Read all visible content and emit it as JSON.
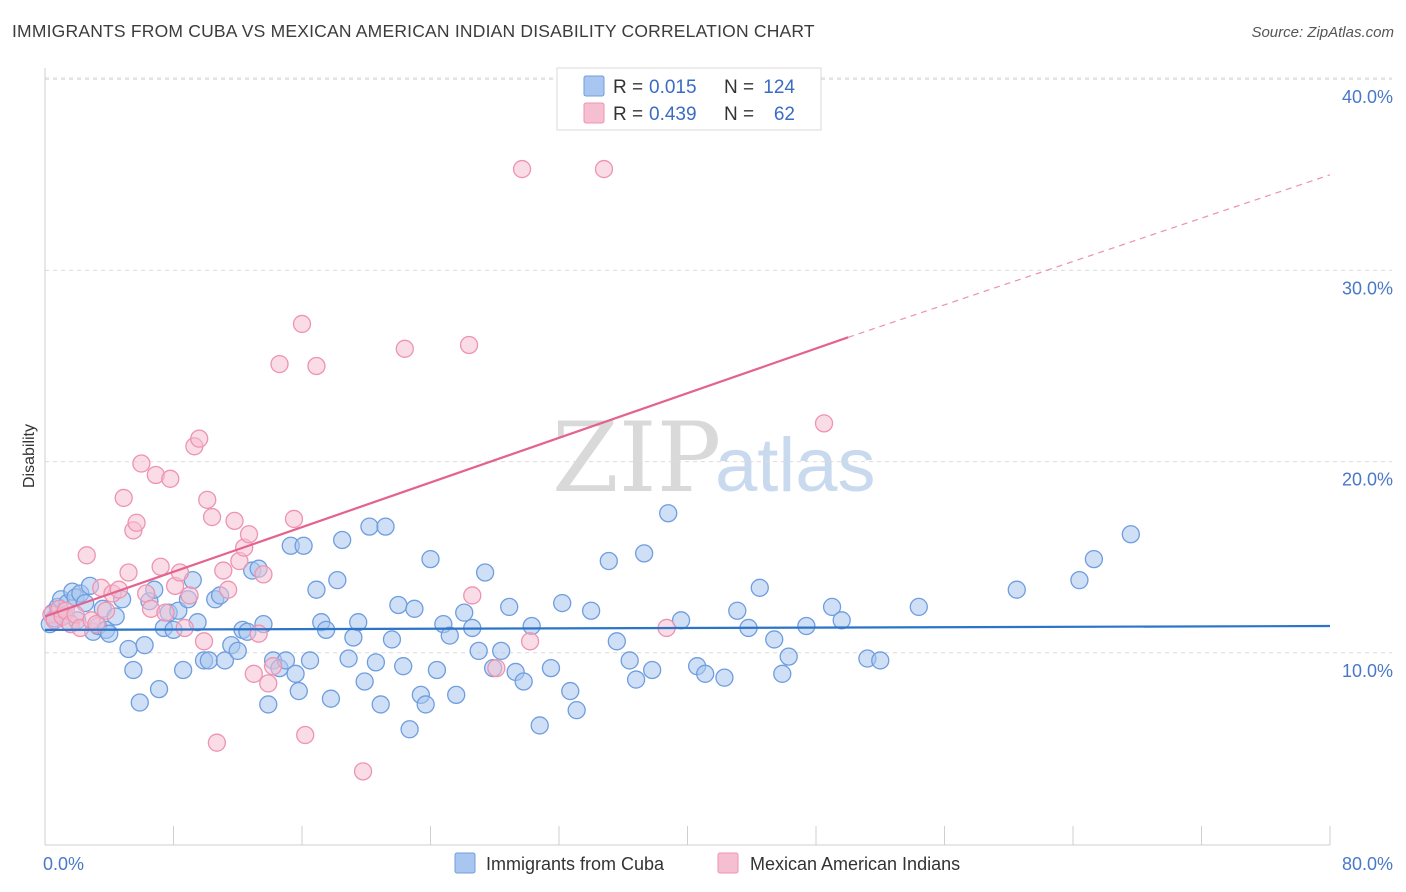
{
  "header": {
    "title": "IMMIGRANTS FROM CUBA VS MEXICAN AMERICAN INDIAN DISABILITY CORRELATION CHART",
    "source": "Source: ZipAtlas.com"
  },
  "watermark": {
    "part1": "ZIP",
    "part2": "atlas"
  },
  "legend": {
    "rows": [
      {
        "r_label": "R =",
        "r_value": "0.015",
        "n_label": "N =",
        "n_value": "124"
      },
      {
        "r_label": "R =",
        "r_value": "0.439",
        "n_label": "N =",
        "n_value": "62"
      }
    ]
  },
  "colors": {
    "blue_fill": "#a8c6ef",
    "blue_stroke": "#6f9ddf",
    "blue_line": "#2c74c8",
    "pink_fill": "#f6bfd1",
    "pink_stroke": "#ee93b1",
    "pink_line": "#e4638c",
    "grid": "#dcdcdc",
    "tick_label": "#4a78c8"
  },
  "chart_data": {
    "type": "scatter",
    "title": "IMMIGRANTS FROM CUBA VS MEXICAN AMERICAN INDIAN DISABILITY CORRELATION CHART",
    "xlabel": "",
    "ylabel": "Disability",
    "xlim": [
      0,
      80
    ],
    "ylim": [
      0,
      41
    ],
    "x_tick_labels": [
      "0.0%",
      "80.0%"
    ],
    "y_ticks": [
      10,
      20,
      30,
      40
    ],
    "y_tick_labels": [
      "10.0%",
      "20.0%",
      "30.0%",
      "40.0%"
    ],
    "grid": "horizontal dashed",
    "legend_position": "top-center",
    "series": [
      {
        "name": "Immigrants from Cuba",
        "color": "#6f9ddf",
        "r": 0.015,
        "n": 124,
        "trend": {
          "x0": 0,
          "y0": 11.2,
          "x1": 80,
          "y1": 11.4
        },
        "points": [
          [
            0.3,
            11.5
          ],
          [
            0.5,
            12.1
          ],
          [
            0.6,
            11.8
          ],
          [
            0.8,
            12.4
          ],
          [
            1.0,
            12.8
          ],
          [
            1.2,
            12.0
          ],
          [
            1.4,
            12.6
          ],
          [
            1.5,
            11.6
          ],
          [
            1.7,
            13.2
          ],
          [
            1.9,
            12.9
          ],
          [
            2.0,
            11.7
          ],
          [
            2.2,
            13.1
          ],
          [
            2.5,
            12.6
          ],
          [
            2.8,
            13.5
          ],
          [
            3.0,
            11.1
          ],
          [
            3.3,
            11.4
          ],
          [
            3.6,
            12.3
          ],
          [
            3.8,
            11.2
          ],
          [
            4.0,
            11.0
          ],
          [
            4.4,
            11.9
          ],
          [
            4.8,
            12.8
          ],
          [
            5.2,
            10.2
          ],
          [
            5.5,
            9.1
          ],
          [
            5.9,
            7.4
          ],
          [
            6.2,
            10.4
          ],
          [
            6.5,
            12.7
          ],
          [
            6.8,
            13.3
          ],
          [
            7.1,
            8.1
          ],
          [
            7.4,
            11.3
          ],
          [
            7.7,
            12.1
          ],
          [
            8.0,
            11.2
          ],
          [
            8.3,
            12.2
          ],
          [
            8.6,
            9.1
          ],
          [
            8.9,
            12.8
          ],
          [
            9.2,
            13.8
          ],
          [
            9.5,
            11.6
          ],
          [
            9.9,
            9.6
          ],
          [
            10.2,
            9.6
          ],
          [
            10.6,
            12.8
          ],
          [
            10.9,
            13.0
          ],
          [
            11.2,
            9.6
          ],
          [
            11.6,
            10.4
          ],
          [
            12.0,
            10.1
          ],
          [
            12.3,
            11.2
          ],
          [
            12.6,
            11.1
          ],
          [
            12.9,
            14.3
          ],
          [
            13.3,
            14.4
          ],
          [
            13.6,
            11.5
          ],
          [
            13.9,
            7.3
          ],
          [
            14.2,
            9.6
          ],
          [
            14.6,
            9.2
          ],
          [
            15.0,
            9.6
          ],
          [
            15.3,
            15.6
          ],
          [
            15.6,
            8.9
          ],
          [
            15.8,
            8.0
          ],
          [
            16.1,
            15.6
          ],
          [
            16.5,
            9.6
          ],
          [
            16.9,
            13.3
          ],
          [
            17.2,
            11.6
          ],
          [
            17.5,
            11.2
          ],
          [
            17.8,
            7.6
          ],
          [
            18.2,
            13.8
          ],
          [
            18.5,
            15.9
          ],
          [
            18.9,
            9.7
          ],
          [
            19.2,
            10.8
          ],
          [
            19.5,
            11.6
          ],
          [
            19.9,
            8.5
          ],
          [
            20.2,
            16.6
          ],
          [
            20.6,
            9.5
          ],
          [
            20.9,
            7.3
          ],
          [
            21.2,
            16.6
          ],
          [
            21.6,
            10.7
          ],
          [
            22.0,
            12.5
          ],
          [
            22.3,
            9.3
          ],
          [
            22.7,
            6.0
          ],
          [
            23.0,
            12.3
          ],
          [
            23.4,
            7.8
          ],
          [
            23.7,
            7.3
          ],
          [
            24.0,
            14.9
          ],
          [
            24.4,
            9.1
          ],
          [
            24.8,
            11.5
          ],
          [
            25.2,
            10.9
          ],
          [
            25.6,
            7.8
          ],
          [
            26.1,
            12.1
          ],
          [
            26.6,
            11.3
          ],
          [
            27.0,
            10.1
          ],
          [
            27.4,
            14.2
          ],
          [
            27.9,
            9.2
          ],
          [
            28.4,
            10.1
          ],
          [
            28.9,
            12.4
          ],
          [
            29.3,
            9.0
          ],
          [
            29.8,
            8.5
          ],
          [
            30.3,
            11.4
          ],
          [
            30.8,
            6.2
          ],
          [
            31.5,
            9.2
          ],
          [
            32.2,
            12.6
          ],
          [
            32.7,
            8.0
          ],
          [
            33.1,
            7.0
          ],
          [
            34.0,
            12.2
          ],
          [
            35.1,
            14.8
          ],
          [
            35.6,
            10.6
          ],
          [
            36.4,
            9.6
          ],
          [
            36.8,
            8.6
          ],
          [
            37.3,
            15.2
          ],
          [
            37.8,
            9.1
          ],
          [
            38.8,
            17.3
          ],
          [
            39.6,
            11.7
          ],
          [
            40.6,
            9.3
          ],
          [
            41.1,
            8.9
          ],
          [
            42.3,
            8.7
          ],
          [
            43.1,
            12.2
          ],
          [
            43.8,
            11.3
          ],
          [
            44.5,
            13.4
          ],
          [
            45.4,
            10.7
          ],
          [
            45.9,
            8.9
          ],
          [
            46.3,
            9.8
          ],
          [
            47.4,
            11.4
          ],
          [
            49.0,
            12.4
          ],
          [
            49.6,
            11.7
          ],
          [
            51.2,
            9.7
          ],
          [
            52.0,
            9.6
          ],
          [
            54.4,
            12.4
          ],
          [
            60.5,
            13.3
          ],
          [
            64.4,
            13.8
          ],
          [
            65.3,
            14.9
          ],
          [
            67.6,
            16.2
          ]
        ]
      },
      {
        "name": "Mexican American Indians",
        "color": "#ee93b1",
        "r": 0.439,
        "n": 62,
        "trend": {
          "x0": 0,
          "y0": 11.9,
          "x1": 50,
          "y1": 26.5,
          "dashed_to_x": 80,
          "dashed_to_y": 35.0
        },
        "points": [
          [
            0.4,
            12.0
          ],
          [
            0.6,
            11.7
          ],
          [
            0.9,
            12.3
          ],
          [
            1.1,
            11.9
          ],
          [
            1.3,
            12.2
          ],
          [
            1.6,
            11.5
          ],
          [
            1.9,
            12.0
          ],
          [
            2.2,
            11.3
          ],
          [
            2.6,
            15.1
          ],
          [
            2.9,
            11.7
          ],
          [
            3.2,
            11.5
          ],
          [
            3.5,
            13.4
          ],
          [
            3.8,
            12.2
          ],
          [
            4.2,
            13.1
          ],
          [
            4.6,
            13.3
          ],
          [
            4.9,
            18.1
          ],
          [
            5.2,
            14.2
          ],
          [
            5.5,
            16.4
          ],
          [
            5.7,
            16.8
          ],
          [
            6.0,
            19.9
          ],
          [
            6.3,
            13.1
          ],
          [
            6.6,
            12.3
          ],
          [
            6.9,
            19.3
          ],
          [
            7.2,
            14.5
          ],
          [
            7.5,
            12.1
          ],
          [
            7.8,
            19.1
          ],
          [
            8.1,
            13.5
          ],
          [
            8.4,
            14.2
          ],
          [
            8.7,
            11.3
          ],
          [
            9.0,
            13.0
          ],
          [
            9.3,
            20.8
          ],
          [
            9.6,
            21.2
          ],
          [
            9.9,
            10.6
          ],
          [
            10.1,
            18.0
          ],
          [
            10.4,
            17.1
          ],
          [
            10.7,
            5.3
          ],
          [
            11.1,
            14.3
          ],
          [
            11.4,
            13.3
          ],
          [
            11.8,
            16.9
          ],
          [
            12.1,
            14.8
          ],
          [
            12.4,
            15.5
          ],
          [
            12.7,
            16.2
          ],
          [
            13.0,
            8.9
          ],
          [
            13.3,
            11.0
          ],
          [
            13.6,
            14.1
          ],
          [
            13.9,
            8.4
          ],
          [
            14.2,
            9.3
          ],
          [
            14.6,
            25.1
          ],
          [
            15.5,
            17.0
          ],
          [
            16.0,
            27.2
          ],
          [
            16.2,
            5.7
          ],
          [
            16.9,
            25.0
          ],
          [
            19.8,
            3.8
          ],
          [
            22.4,
            25.9
          ],
          [
            26.4,
            26.1
          ],
          [
            26.6,
            13.0
          ],
          [
            28.1,
            9.2
          ],
          [
            29.7,
            35.3
          ],
          [
            30.2,
            10.6
          ],
          [
            34.8,
            35.3
          ],
          [
            38.7,
            11.3
          ],
          [
            48.5,
            22.0
          ]
        ]
      }
    ]
  },
  "bottom_legend": {
    "items": [
      "Immigrants from Cuba",
      "Mexican American Indians"
    ]
  }
}
